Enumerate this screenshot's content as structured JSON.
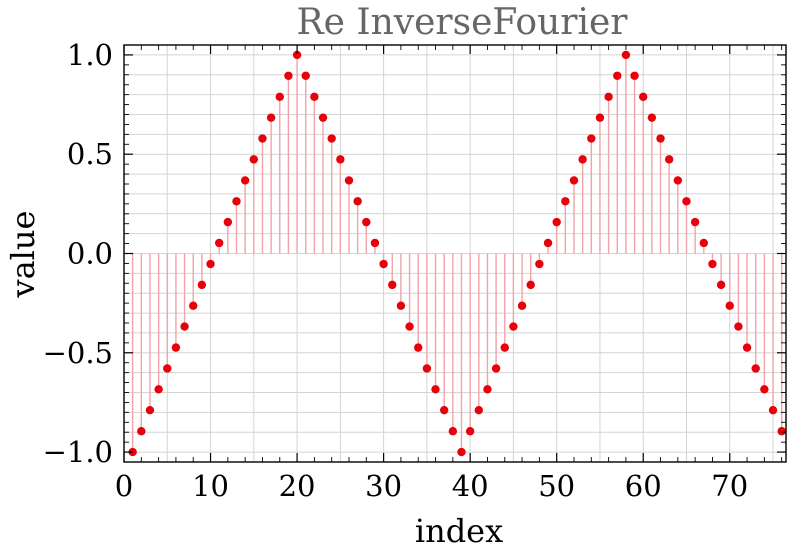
{
  "colors": {
    "points": "#e8000b",
    "stems": "#f2a3a7",
    "grid": "#d4d4d4",
    "title": "#666666"
  },
  "chart_data": {
    "type": "scatter",
    "style": "stem plot with filled points",
    "title": "Re InverseFourier",
    "xlabel": "index",
    "ylabel": "value",
    "xlim": [
      0,
      76.5
    ],
    "ylim": [
      -1.05,
      1.05
    ],
    "grid": true,
    "x_ticks": [
      0,
      10,
      20,
      30,
      40,
      50,
      60,
      70
    ],
    "x_tick_labels": [
      "0",
      "10",
      "20",
      "30",
      "40",
      "50",
      "60",
      "70"
    ],
    "y_ticks": [
      -1.0,
      -0.5,
      0.0,
      0.5,
      1.0
    ],
    "y_tick_labels": [
      "−1.0",
      "−0.5",
      "0.0",
      "0.5",
      "1.0"
    ],
    "series": [
      {
        "x": [
          1,
          2,
          3,
          4,
          5,
          6,
          7,
          8,
          9,
          10,
          11,
          12,
          13,
          14,
          15,
          16,
          17,
          18,
          19,
          20,
          21,
          22,
          23,
          24,
          25,
          26,
          27,
          28,
          29,
          30,
          31,
          32,
          33,
          34,
          35,
          36,
          37,
          38,
          39,
          40,
          41,
          42,
          43,
          44,
          45,
          46,
          47,
          48,
          49,
          50,
          51,
          52,
          53,
          54,
          55,
          56,
          57,
          58,
          59,
          60,
          61,
          62,
          63,
          64,
          65,
          66,
          67,
          68,
          69,
          70,
          71,
          72,
          73,
          74,
          75,
          76
        ],
        "y": [
          -1.0,
          -0.895,
          -0.789,
          -0.684,
          -0.579,
          -0.474,
          -0.368,
          -0.263,
          -0.158,
          -0.053,
          0.053,
          0.158,
          0.263,
          0.368,
          0.474,
          0.579,
          0.684,
          0.789,
          0.895,
          1.0,
          0.895,
          0.789,
          0.684,
          0.579,
          0.474,
          0.368,
          0.263,
          0.158,
          0.053,
          -0.053,
          -0.158,
          -0.263,
          -0.368,
          -0.474,
          -0.579,
          -0.684,
          -0.789,
          -0.895,
          -1.0,
          -0.895,
          -0.789,
          -0.684,
          -0.579,
          -0.474,
          -0.368,
          -0.263,
          -0.158,
          -0.053,
          0.053,
          0.158,
          0.263,
          0.368,
          0.474,
          0.579,
          0.684,
          0.789,
          0.895,
          1.0,
          0.895,
          0.789,
          0.684,
          0.579,
          0.474,
          0.368,
          0.263,
          0.158,
          0.053,
          -0.053,
          -0.158,
          -0.263,
          -0.368,
          -0.474,
          -0.579,
          -0.684,
          -0.789,
          -0.895
        ]
      }
    ]
  }
}
